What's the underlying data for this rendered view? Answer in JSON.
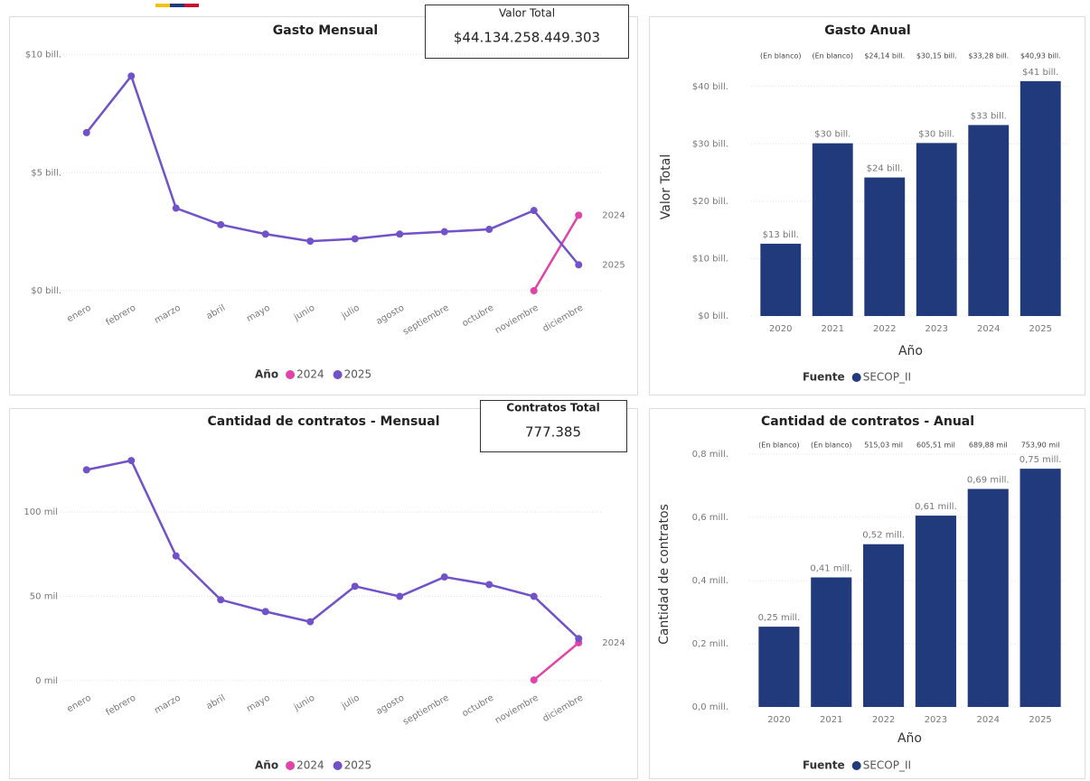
{
  "cards": [
    {
      "label": "Valor Total",
      "value": "$44.134.258.449.303"
    },
    {
      "label": "Contratos Total",
      "value": "777.385"
    }
  ],
  "chart_data": [
    {
      "type": "line",
      "title": "Gasto Mensual",
      "categories": [
        "enero",
        "febrero",
        "marzo",
        "abril",
        "mayo",
        "junio",
        "julio",
        "agosto",
        "septiembre",
        "octubre",
        "noviembre",
        "diciembre"
      ],
      "series": [
        {
          "name": "2024",
          "color": "#e044a8",
          "values": [
            null,
            null,
            null,
            null,
            null,
            null,
            null,
            null,
            null,
            null,
            0.0,
            3.2
          ]
        },
        {
          "name": "2025",
          "color": "#7152c9",
          "values": [
            6.7,
            9.1,
            3.5,
            2.8,
            2.4,
            2.1,
            2.2,
            2.4,
            2.5,
            2.6,
            3.4,
            1.1
          ]
        }
      ],
      "ylim": [
        0,
        10.6
      ],
      "yticks": [
        {
          "value": 0,
          "label": "$0 bill."
        },
        {
          "value": 5,
          "label": "$5 bill."
        },
        {
          "value": 10,
          "label": "$10 bill."
        }
      ],
      "grid": true,
      "end_labels": true,
      "legend_title": "Año",
      "legend": "bottom"
    },
    {
      "type": "bar",
      "title": "Gasto Anual",
      "categories": [
        "2020",
        "2021",
        "2022",
        "2023",
        "2024",
        "2025"
      ],
      "series": [
        {
          "name": "SECOP_II",
          "color": "#213a7b",
          "values": [
            12.6,
            30.1,
            24.14,
            30.15,
            33.28,
            40.93
          ],
          "value_labels": [
            "$13 bill.",
            "$30 bill.",
            "$24 bill.",
            "$30 bill.",
            "$33 bill.",
            "$41 bill."
          ]
        }
      ],
      "top_labels": [
        "(En blanco)",
        "(En blanco)",
        "$24,14 bill.",
        "$30,15 bill.",
        "$33,28 bill.",
        "$40,93 bill."
      ],
      "ylim": [
        0,
        45
      ],
      "yticks": [
        {
          "value": 0,
          "label": "$0 bill."
        },
        {
          "value": 10,
          "label": "$10 bill."
        },
        {
          "value": 20,
          "label": "$20 bill."
        },
        {
          "value": 30,
          "label": "$30 bill."
        },
        {
          "value": 40,
          "label": "$40 bill."
        }
      ],
      "xlabel": "Año",
      "ylabel": "Valor Total",
      "grid": true,
      "legend_title": "Fuente",
      "legend": "bottom"
    },
    {
      "type": "line",
      "title": "Cantidad de contratos - Mensual",
      "categories": [
        "enero",
        "febrero",
        "marzo",
        "abril",
        "mayo",
        "junio",
        "julio",
        "agosto",
        "septiembre",
        "octubre",
        "noviembre",
        "diciembre"
      ],
      "series": [
        {
          "name": "2024",
          "color": "#e044a8",
          "values": [
            null,
            null,
            null,
            null,
            null,
            null,
            null,
            null,
            null,
            null,
            0.5,
            22.5
          ]
        },
        {
          "name": "2025",
          "color": "#7152c9",
          "values": [
            125,
            130.5,
            74,
            48,
            41,
            35,
            56,
            50,
            61.5,
            57,
            50,
            25
          ]
        }
      ],
      "ylim": [
        0,
        145
      ],
      "yticks": [
        {
          "value": 0,
          "label": "0 mil"
        },
        {
          "value": 50,
          "label": "50 mil"
        },
        {
          "value": 100,
          "label": "100 mil"
        }
      ],
      "grid": true,
      "end_labels": true,
      "legend_title": "Año",
      "legend": "bottom"
    },
    {
      "type": "bar",
      "title": "Cantidad de contratos - Anual",
      "categories": [
        "2020",
        "2021",
        "2022",
        "2023",
        "2024",
        "2025"
      ],
      "series": [
        {
          "name": "SECOP_II",
          "color": "#213a7b",
          "values": [
            0.254,
            0.41,
            0.51503,
            0.60551,
            0.68988,
            0.7539
          ],
          "value_labels": [
            "0,25 mill.",
            "0,41 mill.",
            "0,52 mill.",
            "0,61 mill.",
            "0,69 mill.",
            "0,75 mill."
          ]
        }
      ],
      "top_labels": [
        "(En blanco)",
        "(En blanco)",
        "515,03 mil",
        "605,51 mil",
        "689,88 mil",
        "753,90 mil"
      ],
      "ylim": [
        0,
        0.84
      ],
      "yticks": [
        {
          "value": 0,
          "label": "0,0 mill."
        },
        {
          "value": 0.2,
          "label": "0,2 mill."
        },
        {
          "value": 0.4,
          "label": "0,4 mill."
        },
        {
          "value": 0.6,
          "label": "0,6 mill."
        },
        {
          "value": 0.8,
          "label": "0,8 mill."
        }
      ],
      "xlabel": "Año",
      "ylabel": "Cantidad de contratos",
      "grid": true,
      "legend_title": "Fuente",
      "legend": "bottom"
    }
  ]
}
